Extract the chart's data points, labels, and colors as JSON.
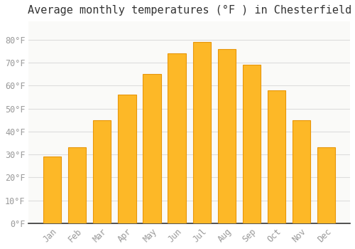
{
  "title": "Average monthly temperatures (°F ) in Chesterfield",
  "months": [
    "Jan",
    "Feb",
    "Mar",
    "Apr",
    "May",
    "Jun",
    "Jul",
    "Aug",
    "Sep",
    "Oct",
    "Nov",
    "Dec"
  ],
  "values": [
    29,
    33,
    45,
    56,
    65,
    74,
    79,
    76,
    69,
    58,
    45,
    33
  ],
  "bar_color": "#FDB827",
  "bar_edge_color": "#E8960A",
  "background_color": "#FFFFFF",
  "plot_bg_color": "#FAFAF8",
  "grid_color": "#DDDDDD",
  "text_color": "#999999",
  "title_color": "#333333",
  "ylim": [
    0,
    88
  ],
  "yticks": [
    0,
    10,
    20,
    30,
    40,
    50,
    60,
    70,
    80
  ],
  "title_fontsize": 11,
  "tick_fontsize": 8.5,
  "bar_width": 0.72
}
